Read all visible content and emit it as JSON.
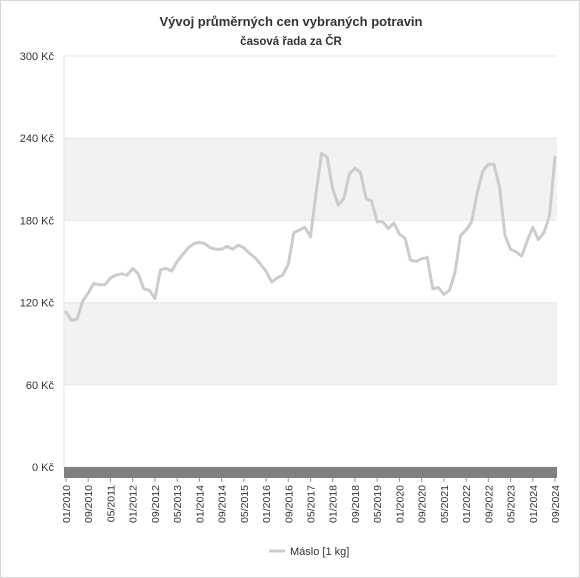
{
  "chart_data": {
    "type": "line",
    "title": "Vývoj průměrných cen vybraných potravin",
    "subtitle": "časová řada za ČR",
    "xlabel": "",
    "ylabel": "",
    "ylim": [
      0,
      300
    ],
    "y_ticks": [
      0,
      60,
      120,
      180,
      240,
      300
    ],
    "y_unit": "Kč",
    "grid": "alternating-bands",
    "legend_position": "bottom-center",
    "x_tick_labels": [
      "01/2010",
      "09/2010",
      "05/2011",
      "01/2012",
      "09/2012",
      "05/2013",
      "01/2014",
      "09/2014",
      "05/2015",
      "01/2016",
      "09/2016",
      "05/2017",
      "01/2018",
      "09/2018",
      "05/2019",
      "01/2020",
      "09/2020",
      "05/2021",
      "01/2022",
      "09/2022",
      "05/2023",
      "01/2024",
      "09/2024"
    ],
    "x_range": [
      "2010-01",
      "2024-09"
    ],
    "colors": {
      "series": "#cccccc",
      "band": "#f2f2f2",
      "baseline": "#808080"
    },
    "series": [
      {
        "name": "Máslo [1 kg]",
        "points": [
          [
            "2010-01",
            113
          ],
          [
            "2010-03",
            107
          ],
          [
            "2010-05",
            108
          ],
          [
            "2010-07",
            121
          ],
          [
            "2010-09",
            127
          ],
          [
            "2010-11",
            134
          ],
          [
            "2011-01",
            133
          ],
          [
            "2011-03",
            133
          ],
          [
            "2011-05",
            138
          ],
          [
            "2011-07",
            140
          ],
          [
            "2011-09",
            141
          ],
          [
            "2011-11",
            140
          ],
          [
            "2012-01",
            145
          ],
          [
            "2012-03",
            141
          ],
          [
            "2012-05",
            130
          ],
          [
            "2012-07",
            129
          ],
          [
            "2012-09",
            123
          ],
          [
            "2012-11",
            144
          ],
          [
            "2013-01",
            145
          ],
          [
            "2013-03",
            143
          ],
          [
            "2013-05",
            150
          ],
          [
            "2013-07",
            155
          ],
          [
            "2013-09",
            160
          ],
          [
            "2013-11",
            163
          ],
          [
            "2014-01",
            164
          ],
          [
            "2014-03",
            163
          ],
          [
            "2014-05",
            160
          ],
          [
            "2014-07",
            159
          ],
          [
            "2014-09",
            159
          ],
          [
            "2014-11",
            161
          ],
          [
            "2015-01",
            159
          ],
          [
            "2015-03",
            162
          ],
          [
            "2015-05",
            160
          ],
          [
            "2015-07",
            156
          ],
          [
            "2015-09",
            153
          ],
          [
            "2015-11",
            148
          ],
          [
            "2016-01",
            143
          ],
          [
            "2016-03",
            135
          ],
          [
            "2016-05",
            138
          ],
          [
            "2016-07",
            140
          ],
          [
            "2016-09",
            148
          ],
          [
            "2016-11",
            171
          ],
          [
            "2017-01",
            173
          ],
          [
            "2017-03",
            175
          ],
          [
            "2017-05",
            168
          ],
          [
            "2017-07",
            200
          ],
          [
            "2017-09",
            229
          ],
          [
            "2017-11",
            226
          ],
          [
            "2018-01",
            203
          ],
          [
            "2018-03",
            191
          ],
          [
            "2018-05",
            196
          ],
          [
            "2018-07",
            214
          ],
          [
            "2018-09",
            218
          ],
          [
            "2018-11",
            215
          ],
          [
            "2019-01",
            196
          ],
          [
            "2019-03",
            194
          ],
          [
            "2019-05",
            179
          ],
          [
            "2019-07",
            179
          ],
          [
            "2019-09",
            174
          ],
          [
            "2019-11",
            178
          ],
          [
            "2020-01",
            170
          ],
          [
            "2020-03",
            167
          ],
          [
            "2020-05",
            151
          ],
          [
            "2020-07",
            150
          ],
          [
            "2020-09",
            152
          ],
          [
            "2020-11",
            153
          ],
          [
            "2021-01",
            130
          ],
          [
            "2021-03",
            131
          ],
          [
            "2021-05",
            126
          ],
          [
            "2021-07",
            129
          ],
          [
            "2021-09",
            142
          ],
          [
            "2021-11",
            169
          ],
          [
            "2022-01",
            173
          ],
          [
            "2022-03",
            179
          ],
          [
            "2022-05",
            200
          ],
          [
            "2022-07",
            216
          ],
          [
            "2022-09",
            221
          ],
          [
            "2022-11",
            221
          ],
          [
            "2023-01",
            205
          ],
          [
            "2023-03",
            169
          ],
          [
            "2023-05",
            159
          ],
          [
            "2023-07",
            157
          ],
          [
            "2023-09",
            154
          ],
          [
            "2023-11",
            165
          ],
          [
            "2024-01",
            175
          ],
          [
            "2024-03",
            166
          ],
          [
            "2024-05",
            171
          ],
          [
            "2024-07",
            183
          ],
          [
            "2024-09",
            226
          ]
        ]
      }
    ]
  }
}
